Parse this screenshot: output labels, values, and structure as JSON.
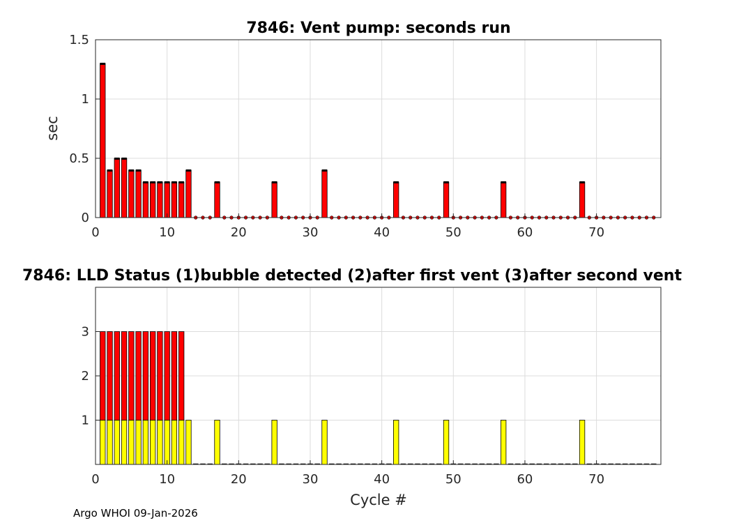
{
  "chart_data": [
    {
      "type": "bar",
      "title": "7846: Vent pump: seconds run",
      "xlabel": "",
      "ylabel": "sec",
      "xlim": [
        0,
        79
      ],
      "ylim": [
        0,
        1.5
      ],
      "xticks": [
        "0",
        "10",
        "20",
        "30",
        "40",
        "50",
        "60",
        "70"
      ],
      "yticks": [
        "0",
        "0.5",
        "1",
        "1.5"
      ],
      "grid": true,
      "bar_color": "#ff0000",
      "x": [
        1,
        2,
        3,
        4,
        5,
        6,
        7,
        8,
        9,
        10,
        11,
        12,
        13,
        14,
        15,
        16,
        17,
        18,
        19,
        20,
        21,
        22,
        23,
        24,
        25,
        26,
        27,
        28,
        29,
        30,
        31,
        32,
        33,
        34,
        35,
        36,
        37,
        38,
        39,
        40,
        41,
        42,
        43,
        44,
        45,
        46,
        47,
        48,
        49,
        50,
        51,
        52,
        53,
        54,
        55,
        56,
        57,
        58,
        59,
        60,
        61,
        62,
        63,
        64,
        65,
        66,
        67,
        68,
        69,
        70,
        71,
        72,
        73,
        74,
        75,
        76,
        77,
        78
      ],
      "values": [
        1.3,
        0.4,
        0.5,
        0.5,
        0.4,
        0.4,
        0.3,
        0.3,
        0.3,
        0.3,
        0.3,
        0.3,
        0.4,
        0,
        0,
        0,
        0.3,
        0,
        0,
        0,
        0,
        0,
        0,
        0,
        0.3,
        0,
        0,
        0,
        0,
        0,
        0,
        0.4,
        0,
        0,
        0,
        0,
        0,
        0,
        0,
        0,
        0,
        0.3,
        0,
        0,
        0,
        0,
        0,
        0,
        0.3,
        0,
        0,
        0,
        0,
        0,
        0,
        0,
        0.3,
        0,
        0,
        0,
        0,
        0,
        0,
        0,
        0,
        0,
        0,
        0.3,
        0,
        0,
        0,
        0,
        0,
        0,
        0,
        0,
        0,
        0
      ]
    },
    {
      "type": "bar",
      "title": "7846: LLD Status   (1)bubble detected   (2)after first vent  (3)after second vent",
      "xlabel": "Cycle #",
      "ylabel": "",
      "xlim": [
        0,
        79
      ],
      "ylim": [
        0,
        4
      ],
      "xticks": [
        "0",
        "10",
        "20",
        "30",
        "40",
        "50",
        "60",
        "70"
      ],
      "yticks": [
        "1",
        "2",
        "3"
      ],
      "grid": true,
      "colors": {
        "level1": "#ffff00",
        "upper": "#ff0000"
      },
      "x": [
        1,
        2,
        3,
        4,
        5,
        6,
        7,
        8,
        9,
        10,
        11,
        12,
        13,
        14,
        15,
        16,
        17,
        18,
        19,
        20,
        21,
        22,
        23,
        24,
        25,
        26,
        27,
        28,
        29,
        30,
        31,
        32,
        33,
        34,
        35,
        36,
        37,
        38,
        39,
        40,
        41,
        42,
        43,
        44,
        45,
        46,
        47,
        48,
        49,
        50,
        51,
        52,
        53,
        54,
        55,
        56,
        57,
        58,
        59,
        60,
        61,
        62,
        63,
        64,
        65,
        66,
        67,
        68,
        69,
        70,
        71,
        72,
        73,
        74,
        75,
        76,
        77,
        78
      ],
      "values": [
        3,
        3,
        3,
        3,
        3,
        3,
        3,
        3,
        3,
        3,
        3,
        3,
        1,
        0,
        0,
        0,
        1,
        0,
        0,
        0,
        0,
        0,
        0,
        0,
        1,
        0,
        0,
        0,
        0,
        0,
        0,
        1,
        0,
        0,
        0,
        0,
        0,
        0,
        0,
        0,
        0,
        1,
        0,
        0,
        0,
        0,
        0,
        0,
        1,
        0,
        0,
        0,
        0,
        0,
        0,
        0,
        1,
        0,
        0,
        0,
        0,
        0,
        0,
        0,
        0,
        0,
        0,
        1,
        0,
        0,
        0,
        0,
        0,
        0,
        0,
        0,
        0,
        0
      ]
    }
  ],
  "footer": "Argo WHOI 09-Jan-2026"
}
